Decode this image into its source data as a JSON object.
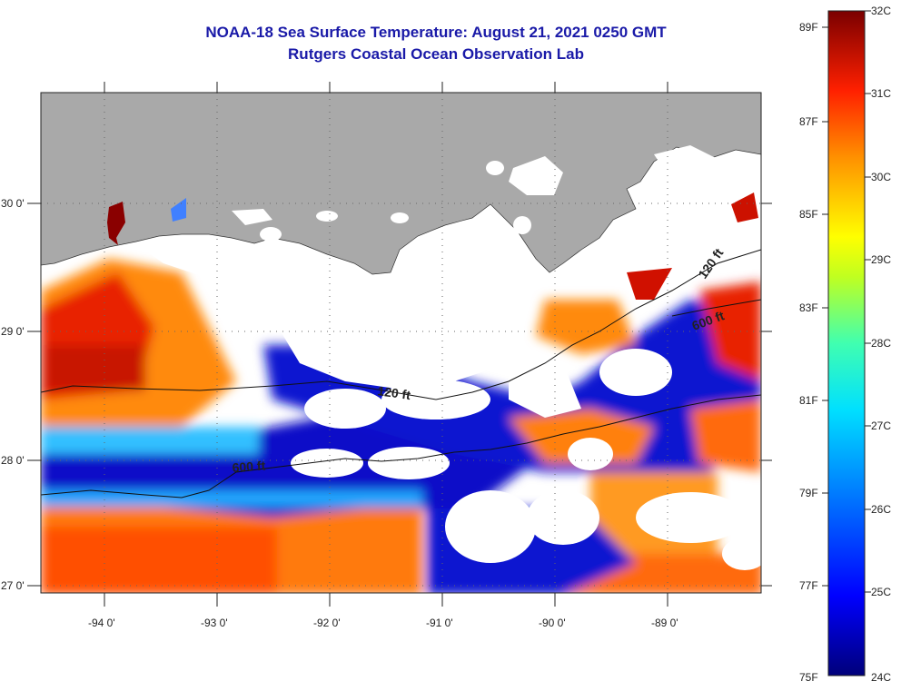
{
  "header": {
    "title": "NOAA-18 Sea Surface Temperature:  August 21, 2021 0250 GMT",
    "subtitle": "Rutgers Coastal Ocean Observation Lab"
  },
  "map": {
    "lon_labels": [
      "-94 0'",
      "-93 0'",
      "-92 0'",
      "-91 0'",
      "-90 0'",
      "-89 0'"
    ],
    "lat_labels": [
      "30 0'",
      "29 0'",
      "28 0'",
      "27 0'"
    ],
    "contour_labels": [
      "120 ft",
      "600 ft",
      "120 ft",
      "600 ft"
    ]
  },
  "colorbar": {
    "f_labels": [
      "89F",
      "87F",
      "85F",
      "83F",
      "81F",
      "79F",
      "77F",
      "75F"
    ],
    "c_labels": [
      "32C",
      "31C",
      "30C",
      "29C",
      "28C",
      "27C",
      "26C",
      "25C",
      "24C"
    ]
  },
  "colors": {
    "land": "#a9a9a9",
    "cloud": "#ffffff",
    "title": "#1a1aa8"
  }
}
